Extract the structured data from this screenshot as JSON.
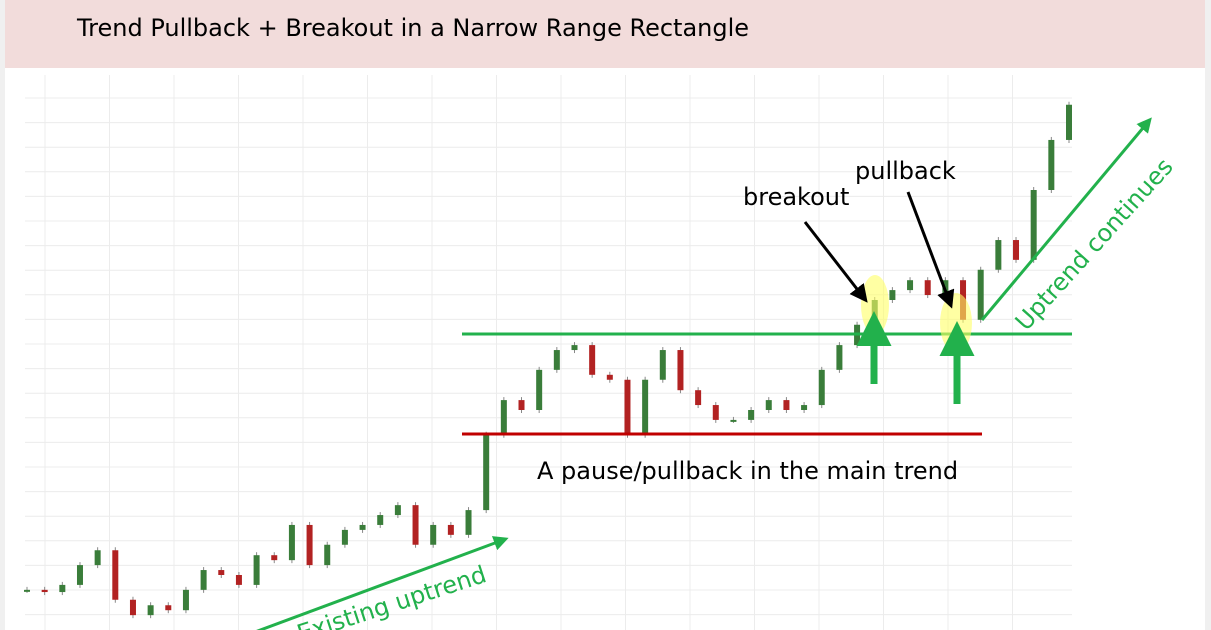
{
  "chart_data": {
    "type": "candlestick",
    "title": "Trend Pullback + Breakout in a Narrow Range Rectangle",
    "annotations": [
      "breakout",
      "pullback",
      "A pause/pullback in the main trend",
      "Uptrend continues",
      "Existing uptrend"
    ],
    "values": [
      7.3,
      6.9,
      8.2,
      11.8,
      14.5,
      5.5,
      2.7,
      4.5,
      3.6,
      7.3,
      10.9,
      10,
      8.2,
      13.6,
      12.7,
      19.1,
      11.8,
      15.5,
      18.2,
      19.1,
      20.9,
      22.7,
      15.5,
      19.1,
      17.3,
      21.8,
      35.5,
      41.8,
      40,
      47.3,
      50.9,
      51.8,
      46.4,
      45.5,
      35.5,
      45.5,
      50.9,
      43.6,
      40.9,
      38.2,
      38.2,
      40,
      41.8,
      40,
      40.9,
      47.3,
      51.8,
      55.5,
      60,
      61.8,
      63.6,
      60.9,
      63.6,
      56.4,
      65.5,
      70.9,
      67.3,
      80,
      89.1,
      95.5
    ],
    "up_color": "#3a7d3a",
    "down_color": "#b22222",
    "ylim": [
      0,
      100
    ],
    "grid": true
  }
}
